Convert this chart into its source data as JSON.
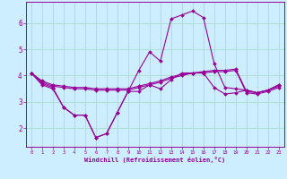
{
  "xlabel": "Windchill (Refroidissement éolien,°C)",
  "background_color": "#cceeff",
  "grid_color": "#aaddcc",
  "line_color": "#990099",
  "hours": [
    0,
    1,
    2,
    3,
    4,
    5,
    6,
    7,
    8,
    9,
    10,
    11,
    12,
    13,
    14,
    15,
    16,
    17,
    18,
    19,
    20,
    21,
    22,
    23
  ],
  "series1": [
    4.1,
    3.8,
    3.65,
    3.6,
    3.55,
    3.55,
    3.5,
    3.5,
    3.5,
    3.5,
    3.6,
    3.7,
    3.8,
    3.95,
    4.05,
    4.1,
    4.15,
    4.2,
    4.2,
    4.25,
    3.4,
    3.35,
    3.45,
    3.6
  ],
  "series2": [
    4.1,
    3.75,
    3.6,
    3.55,
    3.5,
    3.5,
    3.45,
    3.45,
    3.45,
    3.45,
    3.55,
    3.65,
    3.75,
    3.9,
    4.0,
    4.1,
    4.1,
    4.15,
    4.15,
    4.2,
    3.35,
    3.3,
    3.4,
    3.55
  ],
  "series3": [
    4.1,
    3.7,
    3.55,
    2.8,
    2.5,
    2.5,
    1.65,
    1.8,
    2.6,
    3.4,
    4.2,
    4.9,
    4.55,
    6.15,
    6.3,
    6.45,
    6.2,
    4.45,
    3.55,
    3.5,
    3.45,
    3.35,
    3.45,
    3.65
  ],
  "series4": [
    4.1,
    3.65,
    3.5,
    2.8,
    2.5,
    2.5,
    1.65,
    1.8,
    2.6,
    3.4,
    3.4,
    3.65,
    3.5,
    3.85,
    4.1,
    4.1,
    4.1,
    3.55,
    3.3,
    3.35,
    3.45,
    3.35,
    3.45,
    3.65
  ],
  "ylim": [
    1.3,
    6.8
  ],
  "xlim": [
    -0.5,
    23.5
  ],
  "yticks": [
    2,
    3,
    4,
    5,
    6
  ],
  "xticks": [
    0,
    1,
    2,
    3,
    4,
    5,
    6,
    7,
    8,
    9,
    10,
    11,
    12,
    13,
    14,
    15,
    16,
    17,
    18,
    19,
    20,
    21,
    22,
    23
  ],
  "xtick_fontsize": 4.0,
  "ytick_fontsize": 5.5,
  "xlabel_fontsize": 5.0,
  "marker_size": 2.0,
  "line_width": 0.8
}
